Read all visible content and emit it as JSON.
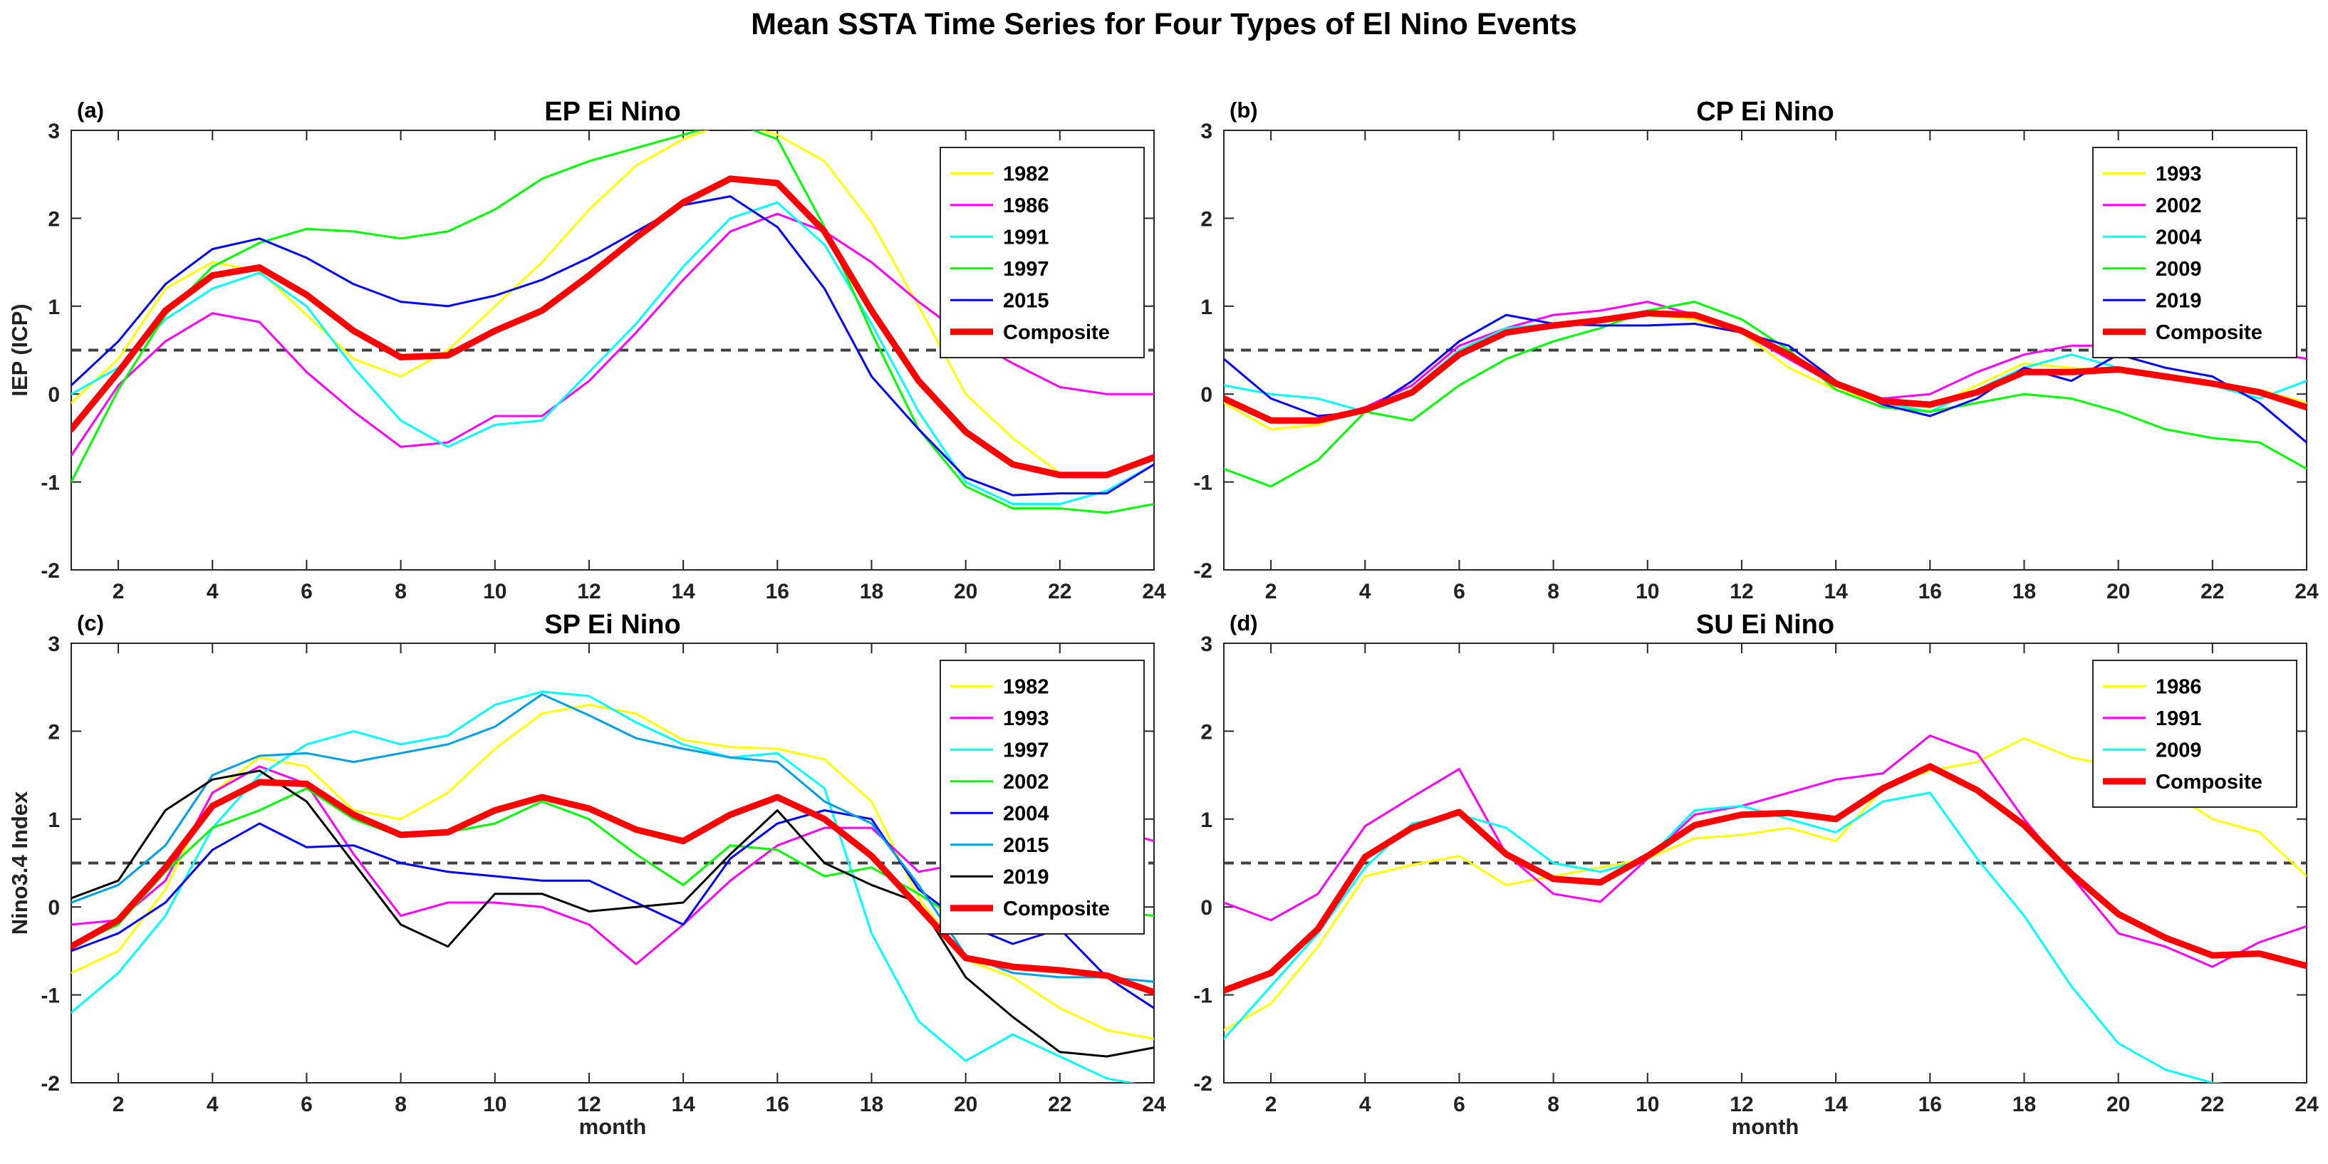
{
  "figure_title": "Mean SSTA Time Series for Four Types of El Nino Events",
  "colors": {
    "1982": "#ffff00",
    "1986": "#ff00ff",
    "1991": "#00ffff",
    "1997": "#00ff00",
    "2015": "#0000ff",
    "Composite": "#ff0000",
    "black": "#000000",
    "steelblue": "#00a0e6",
    "reference_line": "#404040"
  },
  "chart_data": [
    {
      "type": "line",
      "panel": "(a)",
      "title": "EP Ei Nino",
      "xlabel": "",
      "ylabel": "IEP  (ICP)",
      "xlim": [
        1,
        24
      ],
      "ylim": [
        -2,
        3
      ],
      "xticks": [
        2,
        4,
        6,
        8,
        10,
        12,
        14,
        16,
        18,
        20,
        22,
        24
      ],
      "yticks": [
        -2,
        -1,
        0,
        1,
        2,
        3
      ],
      "reference_line": 0.5,
      "legend_location": "top-right",
      "x": [
        1,
        2,
        3,
        4,
        5,
        6,
        7,
        8,
        9,
        10,
        11,
        12,
        13,
        14,
        15,
        16,
        17,
        18,
        19,
        20,
        21,
        22,
        23,
        24
      ],
      "series": [
        {
          "name": "1982",
          "color": "#ffff00",
          "composite": false,
          "values": [
            -0.1,
            0.4,
            1.2,
            1.5,
            1.4,
            0.9,
            0.4,
            0.2,
            0.5,
            1.0,
            1.5,
            2.1,
            2.6,
            2.9,
            3.1,
            2.95,
            2.65,
            1.95,
            1.0,
            0.0,
            -0.5,
            -0.9,
            -0.9,
            -0.75
          ]
        },
        {
          "name": "1986",
          "color": "#ff00ff",
          "composite": false,
          "values": [
            -0.7,
            0.1,
            0.6,
            0.92,
            0.82,
            0.25,
            -0.2,
            -0.6,
            -0.55,
            -0.25,
            -0.25,
            0.15,
            0.7,
            1.3,
            1.85,
            2.05,
            1.85,
            1.5,
            1.05,
            0.65,
            0.35,
            0.08,
            0.0,
            0.0
          ]
        },
        {
          "name": "1991",
          "color": "#00ffff",
          "composite": false,
          "values": [
            0.0,
            0.3,
            0.85,
            1.2,
            1.38,
            1.0,
            0.3,
            -0.3,
            -0.6,
            -0.35,
            -0.3,
            0.25,
            0.8,
            1.45,
            2.0,
            2.18,
            1.7,
            0.8,
            -0.2,
            -1.0,
            -1.25,
            -1.25,
            -1.1,
            -0.8
          ]
        },
        {
          "name": "1997",
          "color": "#00ff00",
          "composite": false,
          "values": [
            -1.0,
            0.05,
            0.9,
            1.45,
            1.72,
            1.88,
            1.85,
            1.77,
            1.85,
            2.1,
            2.45,
            2.65,
            2.8,
            2.95,
            3.1,
            2.9,
            1.9,
            0.7,
            -0.4,
            -1.05,
            -1.3,
            -1.3,
            -1.35,
            -1.25
          ]
        },
        {
          "name": "2015",
          "color": "#0000ff",
          "composite": false,
          "values": [
            0.1,
            0.6,
            1.25,
            1.65,
            1.77,
            1.55,
            1.25,
            1.05,
            1.0,
            1.12,
            1.3,
            1.55,
            1.85,
            2.15,
            2.25,
            1.9,
            1.2,
            0.2,
            -0.4,
            -0.95,
            -1.15,
            -1.13,
            -1.13,
            -0.8
          ]
        },
        {
          "name": "Composite",
          "color": "#ff0000",
          "composite": true,
          "values": [
            -0.4,
            0.25,
            0.95,
            1.35,
            1.44,
            1.13,
            0.72,
            0.42,
            0.44,
            0.72,
            0.95,
            1.35,
            1.78,
            2.18,
            2.45,
            2.4,
            1.85,
            0.95,
            0.15,
            -0.43,
            -0.8,
            -0.92,
            -0.92,
            -0.72
          ]
        }
      ]
    },
    {
      "type": "line",
      "panel": "(b)",
      "title": "CP Ei Nino",
      "xlabel": "",
      "ylabel": "",
      "xlim": [
        1,
        24
      ],
      "ylim": [
        -2,
        3
      ],
      "xticks": [
        2,
        4,
        6,
        8,
        10,
        12,
        14,
        16,
        18,
        20,
        22,
        24
      ],
      "yticks": [
        -2,
        -1,
        0,
        1,
        2,
        3
      ],
      "reference_line": 0.5,
      "legend_location": "top-right",
      "x": [
        1,
        2,
        3,
        4,
        5,
        6,
        7,
        8,
        9,
        10,
        11,
        12,
        13,
        14,
        15,
        16,
        17,
        18,
        19,
        20,
        21,
        22,
        23,
        24
      ],
      "series": [
        {
          "name": "1993",
          "color": "#ffff00",
          "composite": false,
          "values": [
            -0.1,
            -0.4,
            -0.35,
            -0.15,
            0.05,
            0.5,
            0.7,
            0.78,
            0.85,
            0.9,
            0.85,
            0.7,
            0.3,
            0.05,
            -0.1,
            -0.15,
            0.1,
            0.35,
            0.3,
            0.25,
            0.2,
            0.1,
            0.05,
            -0.1
          ]
        },
        {
          "name": "2002",
          "color": "#ff00ff",
          "composite": false,
          "values": [
            -0.05,
            -0.3,
            -0.3,
            -0.15,
            0.1,
            0.55,
            0.75,
            0.9,
            0.95,
            1.05,
            0.9,
            0.7,
            0.4,
            0.1,
            -0.05,
            0.0,
            0.25,
            0.45,
            0.55,
            0.55,
            0.55,
            0.55,
            0.5,
            0.4
          ]
        },
        {
          "name": "2004",
          "color": "#00ffff",
          "composite": false,
          "values": [
            0.1,
            0.0,
            -0.05,
            -0.2,
            0.05,
            0.5,
            0.75,
            0.8,
            0.85,
            0.95,
            0.9,
            0.7,
            0.45,
            0.1,
            -0.1,
            -0.2,
            0.05,
            0.3,
            0.45,
            0.3,
            0.2,
            0.1,
            -0.05,
            0.15
          ]
        },
        {
          "name": "2009",
          "color": "#00ff00",
          "composite": false,
          "values": [
            -0.85,
            -1.05,
            -0.75,
            -0.2,
            -0.3,
            0.1,
            0.4,
            0.6,
            0.75,
            0.95,
            1.05,
            0.85,
            0.5,
            0.05,
            -0.15,
            -0.2,
            -0.1,
            0.0,
            -0.05,
            -0.2,
            -0.4,
            -0.5,
            -0.55,
            -0.85
          ]
        },
        {
          "name": "2019",
          "color": "#0000ff",
          "composite": false,
          "values": [
            0.4,
            -0.05,
            -0.25,
            -0.2,
            0.15,
            0.6,
            0.9,
            0.8,
            0.78,
            0.78,
            0.8,
            0.7,
            0.55,
            0.15,
            -0.12,
            -0.25,
            -0.05,
            0.3,
            0.15,
            0.45,
            0.3,
            0.2,
            -0.1,
            -0.55
          ]
        },
        {
          "name": "Composite",
          "color": "#ff0000",
          "composite": true,
          "values": [
            -0.05,
            -0.3,
            -0.3,
            -0.18,
            0.02,
            0.45,
            0.7,
            0.78,
            0.84,
            0.92,
            0.9,
            0.72,
            0.45,
            0.12,
            -0.08,
            -0.12,
            0.02,
            0.25,
            0.25,
            0.28,
            0.2,
            0.12,
            0.02,
            -0.15
          ]
        }
      ]
    },
    {
      "type": "line",
      "panel": "(c)",
      "title": "SP Ei Nino",
      "xlabel": "month",
      "ylabel": "Nino3.4 Index",
      "xlim": [
        1,
        24
      ],
      "ylim": [
        -2,
        3
      ],
      "xticks": [
        2,
        4,
        6,
        8,
        10,
        12,
        14,
        16,
        18,
        20,
        22,
        24
      ],
      "yticks": [
        -2,
        -1,
        0,
        1,
        2,
        3
      ],
      "reference_line": 0.5,
      "legend_location": "top-right",
      "x": [
        1,
        2,
        3,
        4,
        5,
        6,
        7,
        8,
        9,
        10,
        11,
        12,
        13,
        14,
        15,
        16,
        17,
        18,
        19,
        20,
        21,
        22,
        23,
        24
      ],
      "series": [
        {
          "name": "1982",
          "color": "#ffff00",
          "composite": false,
          "values": [
            -0.75,
            -0.5,
            0.2,
            1.3,
            1.7,
            1.6,
            1.1,
            1.0,
            1.3,
            1.8,
            2.2,
            2.3,
            2.2,
            1.9,
            1.82,
            1.8,
            1.68,
            1.2,
            0.1,
            -0.6,
            -0.8,
            -1.15,
            -1.4,
            -1.5
          ]
        },
        {
          "name": "1993",
          "color": "#ff00ff",
          "composite": false,
          "values": [
            -0.2,
            -0.15,
            0.3,
            1.3,
            1.6,
            1.4,
            0.6,
            -0.1,
            0.05,
            0.05,
            0.0,
            -0.2,
            -0.65,
            -0.2,
            0.3,
            0.7,
            0.9,
            0.9,
            0.4,
            0.5,
            0.7,
            0.8,
            0.9,
            0.75
          ]
        },
        {
          "name": "1997",
          "color": "#00ffff",
          "composite": false,
          "values": [
            -1.2,
            -0.75,
            -0.1,
            0.9,
            1.5,
            1.85,
            2.0,
            1.85,
            1.95,
            2.3,
            2.45,
            2.4,
            2.1,
            1.85,
            1.7,
            1.75,
            1.35,
            -0.3,
            -1.3,
            -1.75,
            -1.45,
            -1.7,
            -1.95,
            -2.05
          ]
        },
        {
          "name": "2002",
          "color": "#00ff00",
          "composite": false,
          "values": [
            -0.45,
            -0.2,
            0.4,
            0.9,
            1.1,
            1.35,
            1.0,
            0.8,
            0.85,
            0.95,
            1.2,
            1.0,
            0.6,
            0.25,
            0.7,
            0.65,
            0.35,
            0.45,
            0.15,
            -0.2,
            -0.15,
            0.05,
            -0.05,
            -0.1
          ]
        },
        {
          "name": "2004",
          "color": "#0000ff",
          "composite": false,
          "values": [
            -0.5,
            -0.3,
            0.05,
            0.65,
            0.95,
            0.68,
            0.7,
            0.5,
            0.4,
            0.35,
            0.3,
            0.3,
            0.05,
            -0.2,
            0.55,
            0.95,
            1.1,
            1.0,
            0.2,
            -0.2,
            -0.42,
            -0.25,
            -0.8,
            -1.15
          ]
        },
        {
          "name": "2015",
          "color": "#00a0e6",
          "composite": false,
          "values": [
            0.05,
            0.25,
            0.7,
            1.5,
            1.72,
            1.75,
            1.65,
            1.75,
            1.85,
            2.05,
            2.42,
            2.18,
            1.92,
            1.8,
            1.7,
            1.65,
            1.2,
            0.95,
            0.25,
            -0.55,
            -0.75,
            -0.8,
            -0.8,
            -0.85
          ]
        },
        {
          "name": "2019",
          "color": "#000000",
          "composite": false,
          "values": [
            0.1,
            0.3,
            1.1,
            1.45,
            1.55,
            1.2,
            0.5,
            -0.2,
            -0.45,
            0.15,
            0.15,
            -0.05,
            0.0,
            0.05,
            0.6,
            1.1,
            0.5,
            0.25,
            0.05,
            -0.8,
            -1.25,
            -1.65,
            -1.7,
            -1.6
          ]
        },
        {
          "name": "Composite",
          "color": "#ff0000",
          "composite": true,
          "values": [
            -0.45,
            -0.15,
            0.45,
            1.15,
            1.42,
            1.4,
            1.05,
            0.82,
            0.85,
            1.1,
            1.25,
            1.12,
            0.88,
            0.75,
            1.05,
            1.25,
            1.0,
            0.58,
            0.0,
            -0.58,
            -0.68,
            -0.72,
            -0.78,
            -0.97
          ]
        }
      ]
    },
    {
      "type": "line",
      "panel": "(d)",
      "title": "SU Ei Nino",
      "xlabel": "month",
      "ylabel": "",
      "xlim": [
        1,
        24
      ],
      "ylim": [
        -2,
        3
      ],
      "xticks": [
        2,
        4,
        6,
        8,
        10,
        12,
        14,
        16,
        18,
        20,
        22,
        24
      ],
      "yticks": [
        -2,
        -1,
        0,
        1,
        2,
        3
      ],
      "reference_line": 0.5,
      "legend_location": "top-right",
      "x": [
        1,
        2,
        3,
        4,
        5,
        6,
        7,
        8,
        9,
        10,
        11,
        12,
        13,
        14,
        15,
        16,
        17,
        18,
        19,
        20,
        21,
        22,
        23,
        24
      ],
      "series": [
        {
          "name": "1986",
          "color": "#ffff00",
          "composite": false,
          "values": [
            -1.4,
            -1.1,
            -0.45,
            0.35,
            0.48,
            0.58,
            0.25,
            0.35,
            0.45,
            0.55,
            0.78,
            0.82,
            0.9,
            0.75,
            1.35,
            1.55,
            1.65,
            1.92,
            1.7,
            1.6,
            1.35,
            1.0,
            0.85,
            0.35
          ]
        },
        {
          "name": "1991",
          "color": "#ff00ff",
          "composite": false,
          "values": [
            0.05,
            -0.15,
            0.15,
            0.92,
            1.25,
            1.57,
            0.6,
            0.15,
            0.06,
            0.55,
            1.05,
            1.15,
            1.3,
            1.45,
            1.52,
            1.95,
            1.75,
            1.0,
            0.35,
            -0.3,
            -0.45,
            -0.68,
            -0.4,
            -0.22
          ]
        },
        {
          "name": "2009",
          "color": "#00ffff",
          "composite": false,
          "values": [
            -1.5,
            -0.9,
            -0.3,
            0.45,
            0.95,
            1.05,
            0.9,
            0.5,
            0.4,
            0.55,
            1.1,
            1.15,
            1.0,
            0.85,
            1.2,
            1.3,
            0.55,
            -0.1,
            -0.9,
            -1.55,
            -1.85,
            -2.0,
            -2.05,
            -2.05
          ]
        },
        {
          "name": "Composite",
          "color": "#ff0000",
          "composite": true,
          "values": [
            -0.95,
            -0.75,
            -0.25,
            0.57,
            0.9,
            1.08,
            0.6,
            0.32,
            0.28,
            0.58,
            0.93,
            1.05,
            1.07,
            1.0,
            1.35,
            1.6,
            1.33,
            0.93,
            0.38,
            -0.08,
            -0.35,
            -0.55,
            -0.53,
            -0.67
          ]
        }
      ]
    }
  ]
}
